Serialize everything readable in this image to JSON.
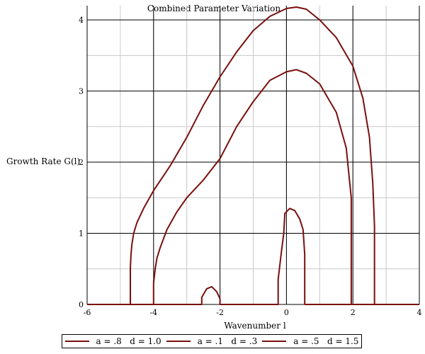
{
  "chart_data": {
    "type": "line",
    "title": "Combined Parameter Variation",
    "xlabel": "Wavenumber l",
    "ylabel": "Growth Rate G(l)",
    "xlim": [
      -6,
      4
    ],
    "ylim": [
      0,
      4.2
    ],
    "xticks": [
      -6,
      -4,
      -2,
      0,
      2,
      4
    ],
    "yticks": [
      0,
      1,
      2,
      3,
      4
    ],
    "grid": true,
    "legend_position": "bottom",
    "line_color": "#7a0f0f",
    "series": [
      {
        "name": "a = .8   d = 1.0",
        "x": [
          -6,
          -4.7,
          -4.7,
          -4.68,
          -4.65,
          -4.6,
          -4.5,
          -4.3,
          -4.0,
          -3.5,
          -3.0,
          -2.5,
          -2.0,
          -1.5,
          -1.0,
          -0.5,
          0.0,
          0.3,
          0.6,
          1.0,
          1.5,
          2.0,
          2.3,
          2.5,
          2.6,
          2.65,
          2.65,
          4
        ],
        "y": [
          0,
          0,
          0.5,
          0.7,
          0.85,
          1.0,
          1.15,
          1.35,
          1.6,
          1.95,
          2.35,
          2.8,
          3.2,
          3.55,
          3.85,
          4.05,
          4.16,
          4.18,
          4.15,
          4.0,
          3.75,
          3.35,
          2.9,
          2.35,
          1.7,
          1.1,
          0,
          0
        ]
      },
      {
        "name": "a = .1   d = .3",
        "x": [
          -6,
          -4.0,
          -4.0,
          -3.95,
          -3.9,
          -3.8,
          -3.6,
          -3.3,
          -3.0,
          -2.5,
          -2.0,
          -1.5,
          -1.0,
          -0.5,
          0.0,
          0.3,
          0.6,
          1.0,
          1.5,
          1.8,
          1.95,
          1.95,
          4
        ],
        "y": [
          0,
          0,
          0.3,
          0.5,
          0.65,
          0.8,
          1.05,
          1.3,
          1.5,
          1.75,
          2.05,
          2.5,
          2.85,
          3.15,
          3.27,
          3.3,
          3.25,
          3.1,
          2.7,
          2.2,
          1.5,
          0,
          0
        ]
      },
      {
        "name": "a = .5   d = 1.5",
        "x": [
          -6,
          -2.55,
          -2.55,
          -2.4,
          -2.25,
          -2.1,
          -2.0,
          -2.0,
          -0.25,
          -0.25,
          -0.15,
          -0.08,
          -0.05,
          0.1,
          0.25,
          0.4,
          0.5,
          0.55,
          0.55,
          4
        ],
        "y": [
          0,
          0,
          0.1,
          0.22,
          0.25,
          0.18,
          0.08,
          0,
          0,
          0.35,
          0.75,
          1.0,
          1.28,
          1.35,
          1.32,
          1.2,
          1.05,
          0.7,
          0,
          0
        ]
      }
    ]
  }
}
